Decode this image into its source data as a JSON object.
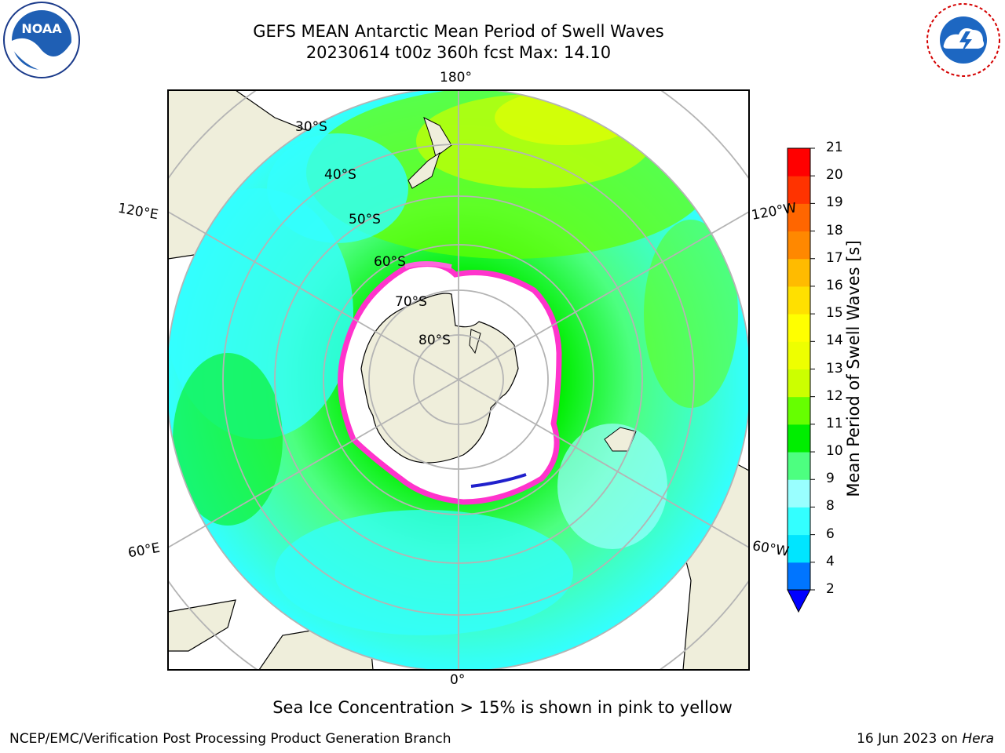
{
  "header": {
    "title_line1": "GEFS MEAN Antarctic Mean Period of Swell Waves",
    "title_line2": "20230614 t00z 360h fcst   Max: 14.10"
  },
  "logos": {
    "left": {
      "name": "NOAA",
      "text": "NOAA"
    },
    "right": {
      "name": "National Weather Service"
    }
  },
  "map": {
    "lon_labels": {
      "top": "180°",
      "bottom": "0°",
      "left_upper": "120°E",
      "left_lower": "60°E",
      "right_upper": "120°W",
      "right_lower": "60°W"
    },
    "lat_labels": [
      "30°S",
      "40°S",
      "50°S",
      "60°S",
      "70°S",
      "80°S"
    ]
  },
  "colorbar": {
    "label": "Mean Period of Swell Waves [s]",
    "ticks": [
      "2",
      "4",
      "6",
      "8",
      "9",
      "10",
      "11",
      "12",
      "13",
      "14",
      "15",
      "16",
      "17",
      "18",
      "19",
      "20",
      "21"
    ],
    "colors": [
      "#0000ff",
      "#0075ff",
      "#00e5ff",
      "#33ffff",
      "#99ffff",
      "#4dff80",
      "#00ee00",
      "#66ff00",
      "#ccff00",
      "#eeff00",
      "#ffff00",
      "#ffe000",
      "#ffbb00",
      "#ff8800",
      "#ff6600",
      "#ff3300",
      "#ff0000"
    ],
    "extend_color": "#0000ff"
  },
  "note": "Sea Ice Concentration > 15% is shown in pink to yellow",
  "footer": {
    "left": "NCEP/EMC/Verification Post Processing Product Generation Branch",
    "date": "16 Jun 2023 on",
    "host": "Hera"
  }
}
